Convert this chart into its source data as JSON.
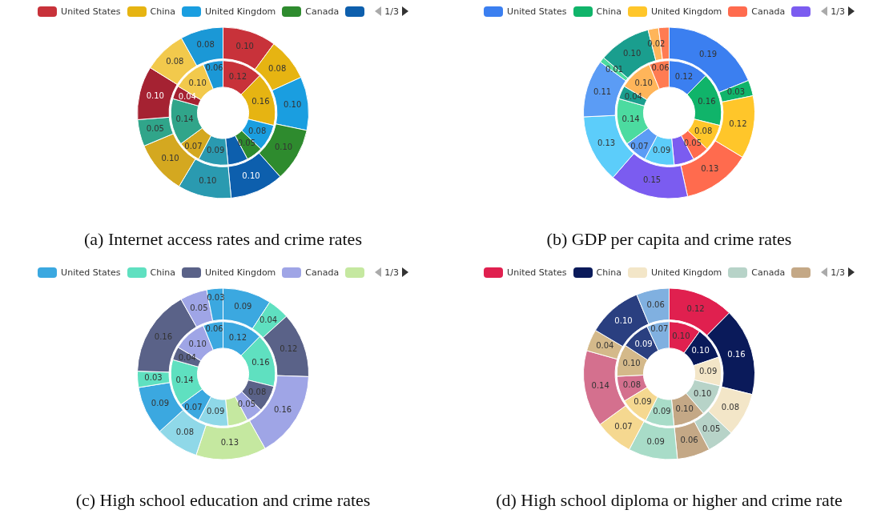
{
  "chart_data": [
    {
      "type": "donut",
      "title": "(a) Internet access rates and crime rates",
      "legend": "top",
      "annotations": [
        "1/3"
      ],
      "categories": [
        "United States",
        "China",
        "United Kingdom",
        "Canada",
        null,
        null,
        null,
        null,
        null,
        null,
        null
      ],
      "colors": [
        "#c8323a",
        "#e6b412",
        "#1a9ee0",
        "#2e8b2e",
        "#0d5fad",
        "#2a9ab0",
        "#d4a820",
        "#30a58a",
        "#a52232",
        "#f2c94c",
        "#1b98d6"
      ],
      "series": [
        {
          "values": [
            0.1,
            0.08,
            0.1,
            0.1,
            0.1,
            0.1,
            0.1,
            0.05,
            0.1,
            0.08,
            0.08
          ],
          "value_labels": [
            "0.10",
            "0.08",
            "0.10",
            "0.10",
            "0.10",
            "0.10",
            "0.10",
            "0.05",
            "0.10",
            "0.08",
            "0.08"
          ]
        },
        {
          "values": [
            0.12,
            0.16,
            0.08,
            0.05,
            0.06,
            0.09,
            0.07,
            0.14,
            0.04,
            0.1,
            0.06
          ],
          "value_labels": [
            "0.12",
            "0.16",
            "0.08",
            "0.05",
            null,
            "0.09",
            "0.07",
            "0.14",
            "0.04",
            "0.10",
            "0.06"
          ]
        }
      ]
    },
    {
      "type": "donut",
      "title": "(b) GDP per capita and crime rates",
      "legend": "top",
      "annotations": [
        "1/3"
      ],
      "categories": [
        "United States",
        "China",
        "United Kingdom",
        "Canada",
        null,
        null,
        null,
        null,
        null,
        null,
        null
      ],
      "colors": [
        "#3b7ff0",
        "#10b46a",
        "#ffc62a",
        "#ff6b4e",
        "#7b5cf0",
        "#5ccdfa",
        "#5b9cf5",
        "#4cdba0",
        "#1a9e8e",
        "#ffb55a",
        "#ff7b52"
      ],
      "series": [
        {
          "values": [
            0.19,
            0.03,
            0.12,
            0.13,
            0.15,
            0.13,
            0.11,
            0.01,
            0.1,
            0.02,
            0.02
          ],
          "value_labels": [
            "0.19",
            "0.03",
            "0.12",
            "0.13",
            "0.15",
            "0.13",
            "0.11",
            "0.01",
            "0.10",
            "0.02",
            null
          ]
        },
        {
          "values": [
            0.12,
            0.16,
            0.08,
            0.05,
            0.06,
            0.09,
            0.07,
            0.14,
            0.04,
            0.1,
            0.06
          ],
          "value_labels": [
            "0.12",
            "0.16",
            "0.08",
            "0.05",
            null,
            "0.09",
            "0.07",
            "0.14",
            "0.04",
            "0.10",
            "0.06"
          ]
        }
      ]
    },
    {
      "type": "donut",
      "title": "(c) High school education and crime rates",
      "legend": "top",
      "annotations": [
        "1/3"
      ],
      "categories": [
        "United States",
        "China",
        "United Kingdom",
        "Canada",
        null,
        null,
        null,
        null,
        null,
        null,
        null
      ],
      "colors": [
        "#3ba8e0",
        "#5fe0c0",
        "#5a6288",
        "#9fa5e6",
        "#c5e8a0",
        "#8fd8e8",
        "#3ba8e0",
        "#5fe0c0",
        "#5a6288",
        "#9fa5e6",
        "#3ba8e0"
      ],
      "series": [
        {
          "values": [
            0.09,
            0.04,
            0.12,
            0.16,
            0.13,
            0.08,
            0.09,
            0.03,
            0.16,
            0.05,
            0.03
          ],
          "value_labels": [
            "0.09",
            "0.04",
            "0.12",
            "0.16",
            "0.13",
            "0.08",
            "0.09",
            "0.03",
            "0.16",
            "0.05",
            "0.03"
          ]
        },
        {
          "values": [
            0.12,
            0.16,
            0.08,
            0.05,
            0.06,
            0.09,
            0.07,
            0.14,
            0.04,
            0.1,
            0.06
          ],
          "value_labels": [
            "0.12",
            "0.16",
            "0.08",
            "0.05",
            null,
            "0.09",
            "0.07",
            "0.14",
            "0.04",
            "0.10",
            "0.06"
          ]
        }
      ]
    },
    {
      "type": "donut",
      "title": "(d) High school diploma or higher and crime rate",
      "legend": "top",
      "annotations": [
        "1/3"
      ],
      "categories": [
        "United States",
        "China",
        "United Kingdom",
        "Canada",
        null,
        null,
        null,
        null,
        null,
        null,
        null
      ],
      "colors": [
        "#e0204f",
        "#0a1a5a",
        "#f3e6c8",
        "#b7d3c8",
        "#c4a886",
        "#a8dcc8",
        "#f5d890",
        "#d4708e",
        "#d4b98a",
        "#2a3f80",
        "#80b0e0"
      ],
      "series": [
        {
          "values": [
            0.12,
            0.16,
            0.08,
            0.05,
            0.06,
            0.09,
            0.07,
            0.14,
            0.04,
            0.1,
            0.06
          ],
          "value_labels": [
            "0.12",
            "0.16",
            "0.08",
            "0.05",
            "0.06",
            "0.09",
            "0.07",
            "0.14",
            "0.04",
            "0.10",
            "0.06"
          ]
        },
        {
          "values": [
            0.1,
            0.1,
            0.09,
            0.1,
            0.1,
            0.09,
            0.09,
            0.08,
            0.1,
            0.09,
            0.07
          ],
          "value_labels": [
            "0.10",
            "0.10",
            "0.09",
            "0.10",
            "0.10",
            "0.09",
            "0.09",
            "0.08",
            "0.10",
            "0.09",
            "0.07"
          ]
        }
      ]
    }
  ]
}
